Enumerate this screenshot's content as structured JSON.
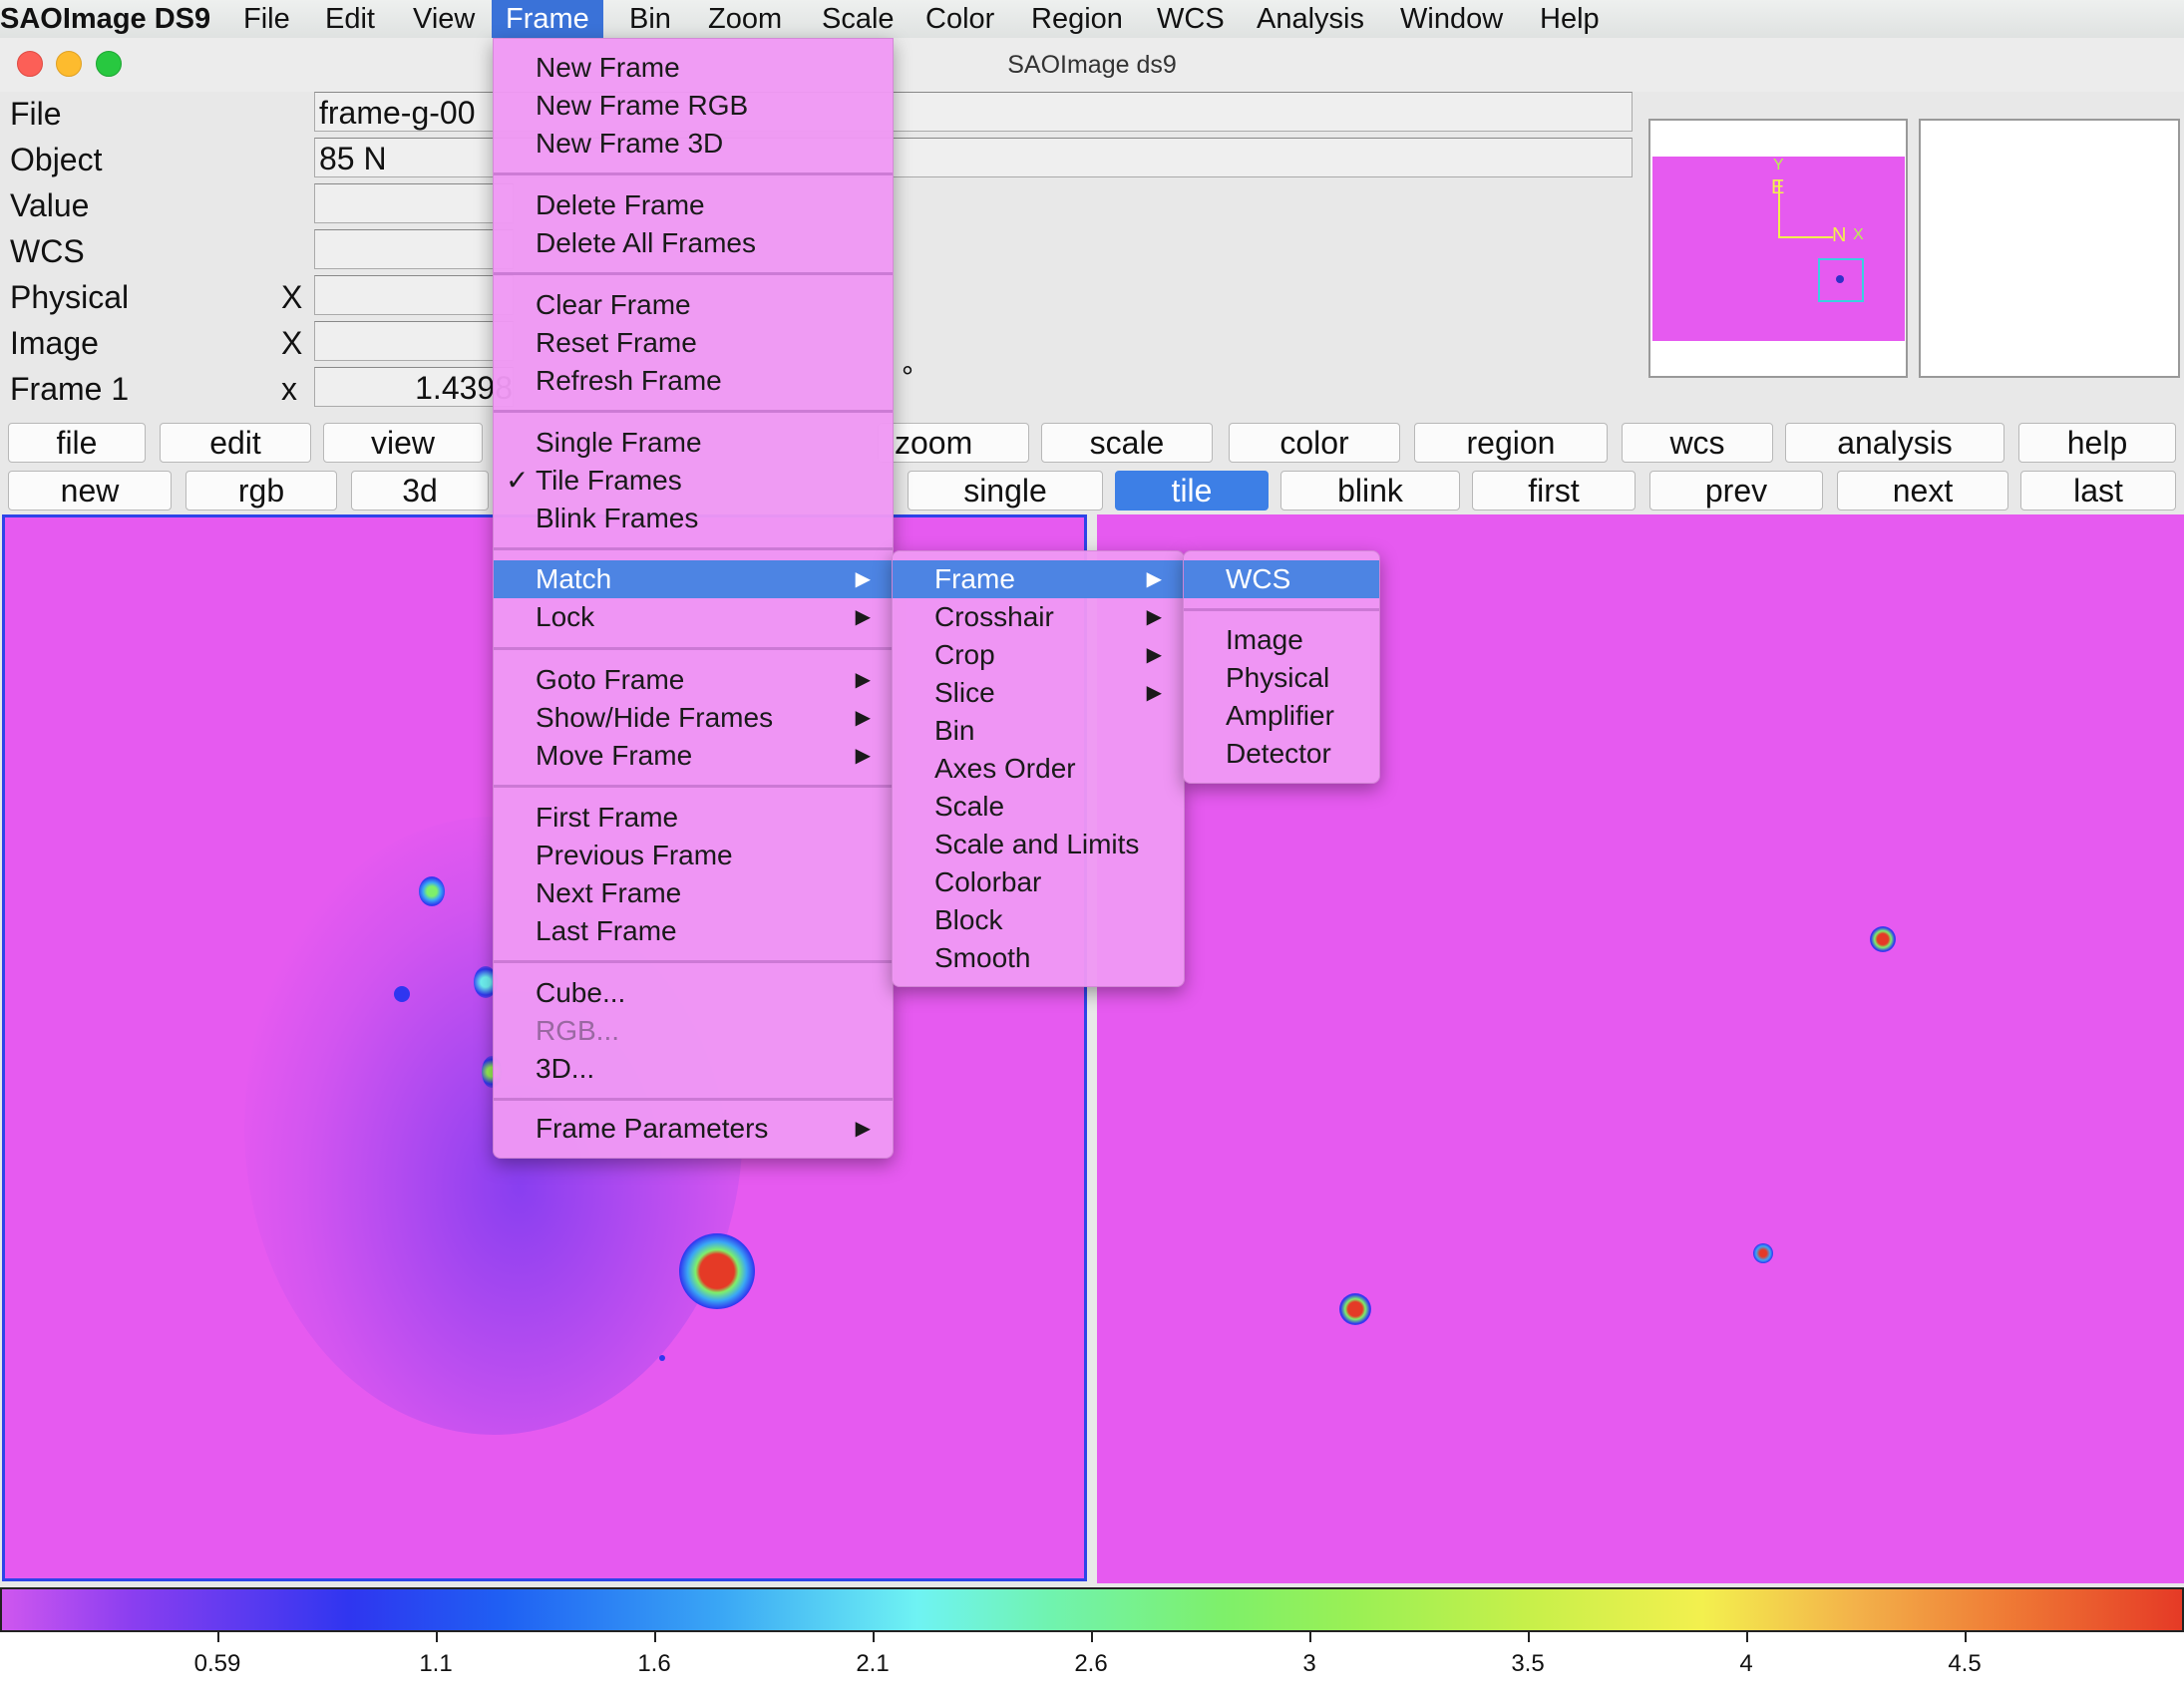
{
  "menubar": {
    "app": "SAOImage DS9",
    "items": [
      "File",
      "Edit",
      "View",
      "Frame",
      "Bin",
      "Zoom",
      "Scale",
      "Color",
      "Region",
      "WCS",
      "Analysis",
      "Window",
      "Help"
    ],
    "active": "Frame"
  },
  "window": {
    "title": "SAOImage ds9"
  },
  "info": {
    "labels": [
      "File",
      "Object",
      "Value",
      "WCS",
      "Physical",
      "Image",
      "Frame 1"
    ],
    "axis_physical": "X",
    "axis_image": "X",
    "axis_frame": "x",
    "file_value": "frame-g-00",
    "object_value": "85 N",
    "frame_value": "1.4398",
    "degree_symbol": "°"
  },
  "buttons_row1": [
    "file",
    "edit",
    "view",
    "zoom",
    "scale",
    "color",
    "region",
    "wcs",
    "analysis",
    "help"
  ],
  "buttons_row2": [
    "new",
    "rgb",
    "3d",
    "single",
    "tile",
    "blink",
    "first",
    "prev",
    "next",
    "last"
  ],
  "active_button": "tile",
  "frame_menu": {
    "items": [
      "New Frame",
      "New Frame RGB",
      "New Frame 3D",
      "Delete Frame",
      "Delete All Frames",
      "Clear Frame",
      "Reset Frame",
      "Refresh Frame",
      "Single Frame",
      "Tile Frames",
      "Blink Frames",
      "Match",
      "Lock",
      "Goto Frame",
      "Show/Hide Frames",
      "Move Frame",
      "First Frame",
      "Previous Frame",
      "Next Frame",
      "Last Frame",
      "Cube...",
      "RGB...",
      "3D...",
      "Frame Parameters"
    ],
    "checked": "Tile Frames",
    "highlighted": "Match",
    "disabled": "RGB...",
    "check_glyph": "✓",
    "arrow_glyph": "▶"
  },
  "match_menu": {
    "items": [
      "Frame",
      "Crosshair",
      "Crop",
      "Slice",
      "Bin",
      "Axes Order",
      "Scale",
      "Scale and Limits",
      "Colorbar",
      "Block",
      "Smooth"
    ],
    "highlighted": "Frame"
  },
  "frame_submenu": {
    "items": [
      "WCS",
      "Image",
      "Physical",
      "Amplifier",
      "Detector"
    ],
    "highlighted": "WCS"
  },
  "panner": {
    "label_e": "E",
    "label_n": "N",
    "label_y": "Y",
    "label_x": "X"
  },
  "colorbar": {
    "ticks": [
      "0.59",
      "1.1",
      "1.6",
      "2.1",
      "2.6",
      "3",
      "3.5",
      "4",
      "4.5"
    ],
    "tick_values": [
      0.59,
      1.1,
      1.6,
      2.1,
      2.6,
      3,
      3.5,
      4,
      4.5
    ],
    "colormap": "rainbow",
    "frame_bg_color": "#e65af0"
  }
}
